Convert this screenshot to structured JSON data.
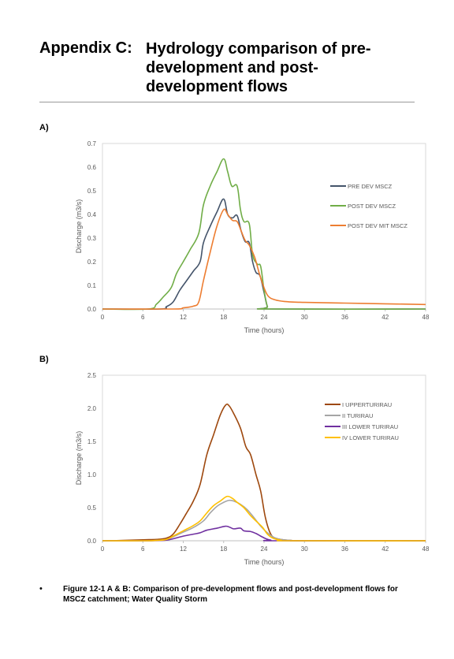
{
  "heading": {
    "appendix": "Appendix C:",
    "title": "Hydrology comparison of pre-development and post-development flows"
  },
  "panels": {
    "a": "A)",
    "b": "B)"
  },
  "caption": {
    "bullet": "•",
    "text": "Figure 12-1 A & B: Comparison of pre-development flows and post-development flows for MSCZ catchment; Water Quality Storm"
  },
  "chart_data": [
    {
      "type": "line",
      "xlabel": "Time (hours)",
      "ylabel": "Discharge (m3/s)",
      "xlim": [
        0,
        48
      ],
      "ylim": [
        0,
        0.7
      ],
      "xticks": [
        0,
        6,
        12,
        18,
        24,
        30,
        36,
        42,
        48
      ],
      "yticks": [
        0.0,
        0.1,
        0.2,
        0.3,
        0.4,
        0.5,
        0.6,
        0.7
      ],
      "ytick_labels": [
        "0.0",
        "0.1",
        "0.2",
        "0.3",
        "0.4",
        "0.5",
        "0.6",
        "0.7"
      ],
      "grid": "vertical and horizontal minor none; y gridlines off",
      "legend": "right",
      "series": [
        {
          "name": "PRE DEV MSCZ",
          "color": "#44546A",
          "points": [
            [
              0,
              0
            ],
            [
              8.5,
              0
            ],
            [
              9.5,
              0.01
            ],
            [
              10.5,
              0.03
            ],
            [
              11.5,
              0.08
            ],
            [
              12.5,
              0.12
            ],
            [
              13.5,
              0.16
            ],
            [
              14.5,
              0.2
            ],
            [
              15,
              0.28
            ],
            [
              16,
              0.35
            ],
            [
              17,
              0.41
            ],
            [
              18,
              0.465
            ],
            [
              18.6,
              0.4
            ],
            [
              19.3,
              0.385
            ],
            [
              20,
              0.395
            ],
            [
              20.6,
              0.33
            ],
            [
              21.2,
              0.285
            ],
            [
              21.8,
              0.28
            ],
            [
              22.3,
              0.2
            ],
            [
              22.8,
              0.155
            ],
            [
              23.4,
              0.14
            ],
            [
              24,
              0.07
            ],
            [
              24.5,
              0.01
            ],
            [
              25,
              0
            ],
            [
              48,
              0
            ]
          ]
        },
        {
          "name": "POST DEV MSCZ",
          "color": "#70AD47",
          "points": [
            [
              0,
              0
            ],
            [
              6.8,
              0
            ],
            [
              8,
              0.02
            ],
            [
              9,
              0.05
            ],
            [
              10.2,
              0.09
            ],
            [
              11,
              0.15
            ],
            [
              12,
              0.2
            ],
            [
              13,
              0.25
            ],
            [
              14.3,
              0.32
            ],
            [
              15,
              0.44
            ],
            [
              16,
              0.52
            ],
            [
              17,
              0.58
            ],
            [
              18,
              0.635
            ],
            [
              18.6,
              0.58
            ],
            [
              19.2,
              0.52
            ],
            [
              20,
              0.52
            ],
            [
              20.5,
              0.42
            ],
            [
              21,
              0.37
            ],
            [
              21.8,
              0.36
            ],
            [
              22.3,
              0.23
            ],
            [
              23,
              0.19
            ],
            [
              23.5,
              0.18
            ],
            [
              24,
              0.08
            ],
            [
              24.5,
              0.01
            ],
            [
              25,
              0
            ],
            [
              48,
              0
            ]
          ]
        },
        {
          "name": "POST DEV MIT MSCZ",
          "color": "#ED7D31",
          "points": [
            [
              0,
              0
            ],
            [
              10.5,
              0
            ],
            [
              12,
              0.005
            ],
            [
              13.5,
              0.012
            ],
            [
              14.3,
              0.03
            ],
            [
              15,
              0.12
            ],
            [
              16,
              0.24
            ],
            [
              17,
              0.35
            ],
            [
              18,
              0.42
            ],
            [
              18.6,
              0.4
            ],
            [
              19.3,
              0.375
            ],
            [
              20,
              0.37
            ],
            [
              20.6,
              0.33
            ],
            [
              21.2,
              0.29
            ],
            [
              21.8,
              0.27
            ],
            [
              22.6,
              0.22
            ],
            [
              23.3,
              0.15
            ],
            [
              24,
              0.09
            ],
            [
              24.6,
              0.055
            ],
            [
              25.5,
              0.04
            ],
            [
              27,
              0.032
            ],
            [
              30,
              0.028
            ],
            [
              36,
              0.025
            ],
            [
              42,
              0.022
            ],
            [
              48,
              0.019
            ]
          ]
        }
      ]
    },
    {
      "type": "line",
      "xlabel": "Time (hours)",
      "ylabel": "Discharge (m3/s)",
      "xlim": [
        0,
        48
      ],
      "ylim": [
        0,
        2.5
      ],
      "xticks": [
        0,
        6,
        12,
        18,
        24,
        30,
        36,
        42,
        48
      ],
      "yticks": [
        0.0,
        0.5,
        1.0,
        1.5,
        2.0,
        2.5
      ],
      "ytick_labels": [
        "0.0",
        "0.5",
        "1.0",
        "1.5",
        "2.0",
        "2.5"
      ],
      "legend": "right",
      "series": [
        {
          "name": "I UPPERTURIRAU",
          "color": "#9E480E",
          "points": [
            [
              0,
              0
            ],
            [
              3,
              0.005
            ],
            [
              6,
              0.015
            ],
            [
              8,
              0.02
            ],
            [
              9.5,
              0.04
            ],
            [
              10.5,
              0.1
            ],
            [
              11.5,
              0.25
            ],
            [
              12.5,
              0.42
            ],
            [
              13.5,
              0.6
            ],
            [
              14.5,
              0.85
            ],
            [
              15.5,
              1.3
            ],
            [
              16.5,
              1.6
            ],
            [
              17.5,
              1.9
            ],
            [
              18.3,
              2.05
            ],
            [
              18.8,
              2.04
            ],
            [
              19.5,
              1.92
            ],
            [
              20.5,
              1.7
            ],
            [
              21.3,
              1.42
            ],
            [
              22,
              1.3
            ],
            [
              22.8,
              1.0
            ],
            [
              23.5,
              0.75
            ],
            [
              24.2,
              0.35
            ],
            [
              25,
              0.1
            ],
            [
              26,
              0.03
            ],
            [
              28,
              0.005
            ],
            [
              30,
              0
            ],
            [
              48,
              0
            ]
          ]
        },
        {
          "name": "II TURIRAU",
          "color": "#A5A5A5",
          "points": [
            [
              0,
              0
            ],
            [
              6,
              0
            ],
            [
              8,
              0.005
            ],
            [
              9.5,
              0.02
            ],
            [
              10.5,
              0.06
            ],
            [
              12,
              0.13
            ],
            [
              13.5,
              0.2
            ],
            [
              15,
              0.3
            ],
            [
              16,
              0.42
            ],
            [
              17,
              0.52
            ],
            [
              18,
              0.58
            ],
            [
              18.8,
              0.61
            ],
            [
              19.5,
              0.6
            ],
            [
              20.5,
              0.55
            ],
            [
              21.5,
              0.47
            ],
            [
              22.5,
              0.35
            ],
            [
              23.5,
              0.22
            ],
            [
              24.5,
              0.12
            ],
            [
              25.5,
              0.05
            ],
            [
              26.5,
              0.02
            ],
            [
              28,
              0.005
            ],
            [
              30,
              0
            ],
            [
              48,
              0
            ]
          ]
        },
        {
          "name": "III LOWER TURIRAU",
          "color": "#7030A0",
          "points": [
            [
              0,
              0
            ],
            [
              6,
              0
            ],
            [
              8,
              0.002
            ],
            [
              9.5,
              0.01
            ],
            [
              10.5,
              0.03
            ],
            [
              12,
              0.07
            ],
            [
              13.5,
              0.1
            ],
            [
              14.5,
              0.12
            ],
            [
              15.5,
              0.16
            ],
            [
              17,
              0.19
            ],
            [
              18.3,
              0.22
            ],
            [
              19,
              0.2
            ],
            [
              19.5,
              0.18
            ],
            [
              20.5,
              0.19
            ],
            [
              21,
              0.15
            ],
            [
              22,
              0.14
            ],
            [
              22.8,
              0.11
            ],
            [
              23.5,
              0.07
            ],
            [
              24.3,
              0.03
            ],
            [
              25,
              0.01
            ],
            [
              26,
              0
            ],
            [
              48,
              0
            ]
          ]
        },
        {
          "name": "IV LOWER TURIRAU",
          "color": "#FFC000",
          "points": [
            [
              0,
              0
            ],
            [
              6,
              0
            ],
            [
              8,
              0.005
            ],
            [
              9.5,
              0.02
            ],
            [
              10.5,
              0.07
            ],
            [
              12,
              0.15
            ],
            [
              13.5,
              0.23
            ],
            [
              14.5,
              0.3
            ],
            [
              15.5,
              0.42
            ],
            [
              16.5,
              0.53
            ],
            [
              17.5,
              0.6
            ],
            [
              18.5,
              0.67
            ],
            [
              19.3,
              0.64
            ],
            [
              20,
              0.58
            ],
            [
              21,
              0.5
            ],
            [
              22,
              0.38
            ],
            [
              23,
              0.28
            ],
            [
              23.8,
              0.2
            ],
            [
              24.5,
              0.1
            ],
            [
              25.3,
              0.04
            ],
            [
              26.5,
              0.01
            ],
            [
              28,
              0
            ],
            [
              48,
              0
            ]
          ]
        }
      ]
    }
  ]
}
